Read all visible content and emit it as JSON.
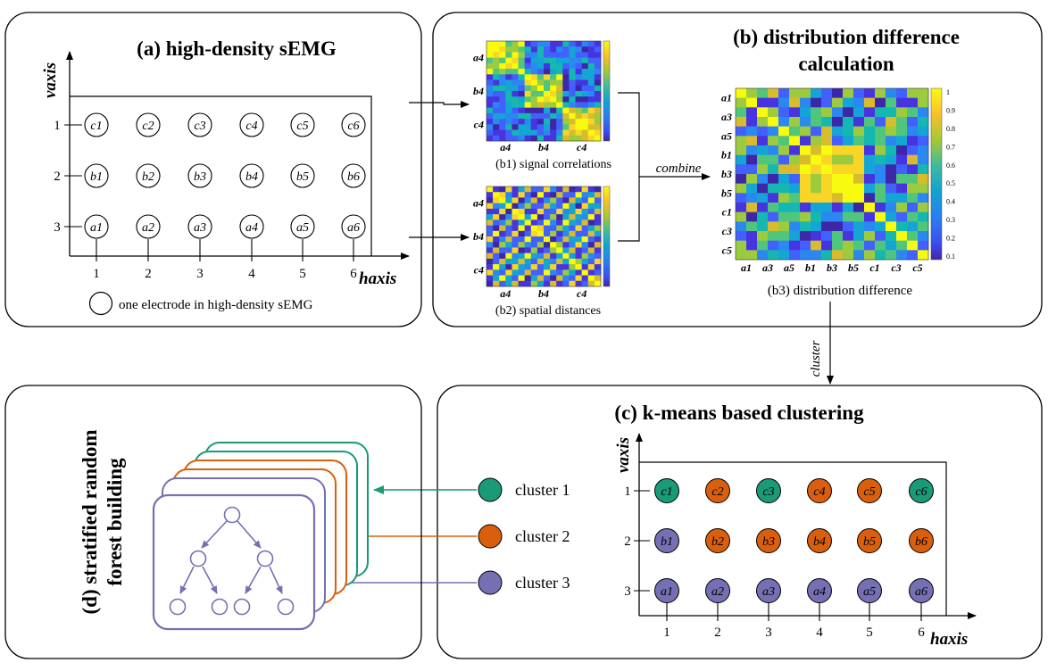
{
  "panel_a": {
    "title": "(a) high-density sEMG",
    "y_axis_label": "vaxis",
    "x_axis_label": "haxis",
    "y_ticks": [
      "1",
      "2",
      "3"
    ],
    "x_ticks": [
      "1",
      "2",
      "3",
      "4",
      "5",
      "6"
    ],
    "rows": [
      [
        "c1",
        "c2",
        "c3",
        "c4",
        "c5",
        "c6"
      ],
      [
        "b1",
        "b2",
        "b3",
        "b4",
        "b5",
        "b6"
      ],
      [
        "a1",
        "a2",
        "a3",
        "a4",
        "a5",
        "a6"
      ]
    ],
    "legend": "one electrode in high-density sEMG"
  },
  "panel_b": {
    "title_line1": "(b) distribution difference",
    "title_line2": "calculation",
    "b1": {
      "caption": "(b1) signal correlations",
      "y_labels": [
        "a4",
        "b4",
        "c4"
      ],
      "x_labels": [
        "a4",
        "b4",
        "c4"
      ]
    },
    "b2": {
      "caption": "(b2) spatial distances",
      "y_labels": [
        "a4",
        "b4",
        "c4"
      ],
      "x_labels": [
        "a4",
        "b4",
        "c4"
      ]
    },
    "combine_label": "combine",
    "b3": {
      "caption": "(b3) distribution difference",
      "y_labels": [
        "a1",
        "a3",
        "a5",
        "b1",
        "b3",
        "b5",
        "c1",
        "c3",
        "c5"
      ],
      "x_labels": [
        "a1",
        "a3",
        "a5",
        "b1",
        "b3",
        "b5",
        "c1",
        "c3",
        "c5"
      ],
      "colorbar_ticks": [
        "1",
        "0.9",
        "0.8",
        "0.7",
        "0.6",
        "0.5",
        "0.4",
        "0.3",
        "0.2",
        "0.1"
      ]
    }
  },
  "cluster_label": "cluster",
  "panel_c": {
    "title": "(c) k-means based clustering",
    "y_axis_label": "vaxis",
    "x_axis_label": "haxis",
    "y_ticks": [
      "1",
      "2",
      "3"
    ],
    "x_ticks": [
      "1",
      "2",
      "3",
      "4",
      "5",
      "6"
    ],
    "rows": [
      [
        {
          "label": "c1",
          "cluster": 1
        },
        {
          "label": "c2",
          "cluster": 2
        },
        {
          "label": "c3",
          "cluster": 1
        },
        {
          "label": "c4",
          "cluster": 2
        },
        {
          "label": "c5",
          "cluster": 2
        },
        {
          "label": "c6",
          "cluster": 1
        }
      ],
      [
        {
          "label": "b1",
          "cluster": 3
        },
        {
          "label": "b2",
          "cluster": 2
        },
        {
          "label": "b3",
          "cluster": 2
        },
        {
          "label": "b4",
          "cluster": 2
        },
        {
          "label": "b5",
          "cluster": 2
        },
        {
          "label": "b6",
          "cluster": 2
        }
      ],
      [
        {
          "label": "a1",
          "cluster": 3
        },
        {
          "label": "a2",
          "cluster": 3
        },
        {
          "label": "a3",
          "cluster": 3
        },
        {
          "label": "a4",
          "cluster": 3
        },
        {
          "label": "a5",
          "cluster": 3
        },
        {
          "label": "a6",
          "cluster": 3
        }
      ]
    ],
    "legend": [
      "cluster 1",
      "cluster 2",
      "cluster 3"
    ]
  },
  "panel_d": {
    "title_line1": "(d) stratified random",
    "title_line2": "forest building"
  },
  "colors": {
    "cluster_1": "#1a9a76",
    "cluster_2": "#d95f0e",
    "cluster_3": "#7570b3"
  }
}
